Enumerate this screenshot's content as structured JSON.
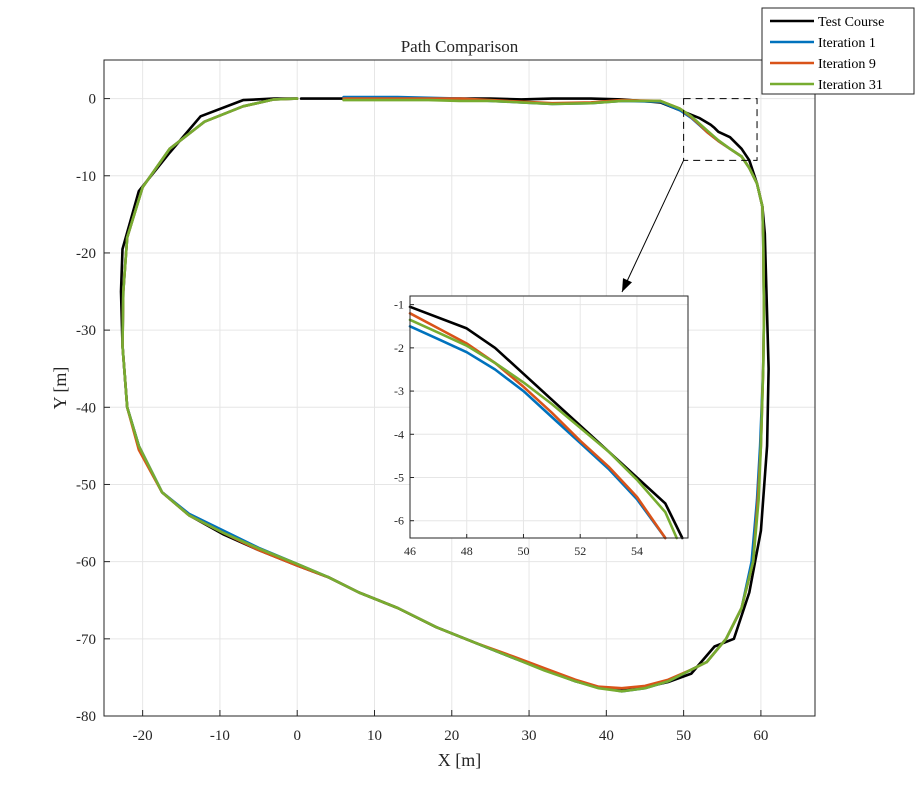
{
  "chart_data": {
    "type": "line",
    "title": "Path Comparison",
    "xlabel": "X [m]",
    "ylabel": "Y [m]",
    "xlim": [
      -25,
      67
    ],
    "ylim": [
      -80,
      5
    ],
    "xticks": [
      -20,
      -10,
      0,
      10,
      20,
      30,
      40,
      50,
      60
    ],
    "yticks": [
      0,
      -10,
      -20,
      -30,
      -40,
      -50,
      -60,
      -70,
      -80
    ],
    "grid": true,
    "legend_position": "top-right",
    "series": [
      {
        "name": "Test Course",
        "color": "#000000",
        "x": [
          0,
          -3,
          -7,
          -12.5,
          -16.5,
          -20.5,
          -22.6,
          -22.8,
          -22.6,
          -22,
          -20.5,
          -17.5,
          -14,
          -9.5,
          -5,
          0,
          4,
          8,
          13,
          18,
          23,
          28,
          32,
          36,
          39,
          42,
          45,
          48,
          51,
          54,
          56.5,
          58.5,
          60,
          60.8,
          61,
          60.8,
          60.5,
          60.2,
          59.5,
          58.5,
          57.5,
          56,
          54.5,
          54,
          53.5,
          52,
          47,
          42,
          38,
          33,
          29,
          25,
          21,
          17,
          13,
          9,
          5,
          0.5
        ],
        "y": [
          0,
          0,
          -0.2,
          -2.3,
          -7,
          -12,
          -19.5,
          -25,
          -32,
          -40,
          -45,
          -51,
          -54,
          -56.5,
          -58.5,
          -60.5,
          -62,
          -64,
          -66,
          -68.5,
          -70.5,
          -72.5,
          -74,
          -75.5,
          -76.3,
          -76.7,
          -76.3,
          -75.6,
          -74.5,
          -71,
          -70,
          -64,
          -56,
          -45,
          -35,
          -28,
          -17.5,
          -14,
          -11,
          -8,
          -6.5,
          -5,
          -4.3,
          -3.8,
          -3.4,
          -2.5,
          -0.5,
          -0.1,
          0,
          0,
          -0.1,
          0,
          0,
          0,
          0,
          0,
          0,
          0
        ]
      },
      {
        "name": "Iteration 1",
        "color": "#0072BD",
        "x": [
          0,
          -3,
          -7,
          -12,
          -16.5,
          -20,
          -22,
          -22.5,
          -22.6,
          -22,
          -20.5,
          -17.5,
          -14,
          -9.5,
          -5,
          0,
          4,
          8,
          13,
          18,
          23,
          28,
          32,
          36,
          39,
          42,
          45,
          48,
          51,
          53,
          55.5,
          57.5,
          58.8,
          59.5,
          59.9,
          60.3,
          60.4,
          60.3,
          60.2,
          59.5,
          58.5,
          57.5,
          56,
          54.5,
          53,
          52,
          51,
          49.5,
          47,
          42,
          38,
          33,
          29,
          25,
          21,
          17,
          13,
          9,
          6
        ],
        "y": [
          0,
          -0.1,
          -1,
          -3,
          -6.5,
          -11.5,
          -18,
          -25,
          -32,
          -40,
          -45,
          -51,
          -53.8,
          -56,
          -58.2,
          -60.3,
          -62,
          -64,
          -66,
          -68.5,
          -70.5,
          -72.5,
          -74,
          -75.5,
          -76.3,
          -76.8,
          -76.4,
          -75.5,
          -74,
          -73,
          -70,
          -66,
          -60,
          -52,
          -45,
          -35,
          -28,
          -18,
          -14,
          -11,
          -9,
          -7.5,
          -6.5,
          -5.5,
          -4.3,
          -3.4,
          -2.5,
          -1.5,
          -0.4,
          -0.3,
          -0.6,
          -0.7,
          -0.5,
          -0.3,
          0,
          0.1,
          0.2,
          0.2,
          0.2
        ]
      },
      {
        "name": "Iteration 9",
        "color": "#D95319",
        "x": [
          0,
          -3,
          -7,
          -12,
          -16.5,
          -20,
          -22,
          -22.5,
          -22.6,
          -22,
          -20.5,
          -17.5,
          -14,
          -9.5,
          -5,
          0,
          4,
          8,
          13,
          18,
          23,
          28,
          32,
          36,
          39,
          42,
          45,
          48,
          51,
          53,
          55.5,
          57.5,
          59,
          59.6,
          60,
          60.3,
          60.4,
          60.3,
          60.2,
          59.5,
          58.5,
          57.5,
          56,
          54.5,
          53,
          52,
          51,
          49.5,
          47,
          42,
          38,
          33,
          29,
          25,
          21,
          17,
          13,
          9,
          6
        ],
        "y": [
          0,
          -0.1,
          -1,
          -3,
          -6.5,
          -11.5,
          -18,
          -25,
          -32,
          -40,
          -45.5,
          -51,
          -54,
          -56.3,
          -58.5,
          -60.5,
          -62,
          -64,
          -66,
          -68.5,
          -70.5,
          -72.3,
          -73.8,
          -75.3,
          -76.2,
          -76.4,
          -76.1,
          -75.3,
          -74,
          -73,
          -70,
          -66,
          -60,
          -52,
          -45,
          -35,
          -28,
          -18,
          -14,
          -11,
          -9,
          -7.5,
          -6.5,
          -5.5,
          -4.3,
          -3.3,
          -2.4,
          -1.3,
          -0.3,
          -0.2,
          -0.5,
          -0.6,
          -0.4,
          -0.2,
          0,
          0,
          0,
          0,
          0
        ]
      },
      {
        "name": "Iteration 31",
        "color": "#77AC30",
        "x": [
          0,
          -3,
          -7,
          -12,
          -16.5,
          -20,
          -22,
          -22.5,
          -22.6,
          -22,
          -20.5,
          -17.5,
          -14,
          -9.5,
          -5,
          0,
          4,
          8,
          13,
          18,
          23,
          28,
          32,
          36,
          39,
          42,
          45,
          48,
          51,
          53,
          55.5,
          57.5,
          59,
          59.7,
          60,
          60.3,
          60.4,
          60.3,
          60.2,
          59.5,
          58.5,
          57.5,
          56,
          54.5,
          53,
          52,
          51,
          49.5,
          47,
          42,
          38,
          33,
          29,
          25,
          21,
          17,
          13,
          9,
          6
        ],
        "y": [
          0,
          -0.1,
          -1,
          -3,
          -6.5,
          -11.5,
          -18,
          -25,
          -32,
          -40,
          -45,
          -51,
          -54,
          -56.3,
          -58.3,
          -60.3,
          -62,
          -64,
          -66,
          -68.5,
          -70.5,
          -72.5,
          -74.1,
          -75.5,
          -76.4,
          -76.8,
          -76.4,
          -75.5,
          -74,
          -73,
          -70,
          -66,
          -60,
          -52,
          -45,
          -35,
          -28,
          -18,
          -14,
          -11,
          -9,
          -7.5,
          -6.5,
          -5.4,
          -4.1,
          -3.2,
          -2.3,
          -1.3,
          -0.3,
          -0.3,
          -0.6,
          -0.7,
          -0.5,
          -0.3,
          -0.3,
          -0.2,
          -0.2,
          -0.2,
          -0.2
        ]
      }
    ],
    "zoom_box": {
      "xlim": [
        50,
        59.5
      ],
      "ylim": [
        -8,
        0
      ]
    },
    "inset": {
      "xlim": [
        46,
        55.8
      ],
      "ylim": [
        -6.4,
        -0.8
      ],
      "xticks": [
        46,
        48,
        50,
        52,
        54
      ],
      "yticks": [
        -1,
        -2,
        -3,
        -4,
        -5,
        -6
      ],
      "series": [
        {
          "name": "Test Course",
          "color": "#000000",
          "x": [
            46,
            48,
            49,
            50,
            51,
            52,
            53,
            54,
            55,
            55.6
          ],
          "y": [
            -1.05,
            -1.55,
            -2.0,
            -2.6,
            -3.2,
            -3.8,
            -4.4,
            -5.0,
            -5.6,
            -6.4
          ]
        },
        {
          "name": "Iteration 1",
          "color": "#0072BD",
          "x": [
            46,
            47,
            48,
            49,
            50,
            51,
            52,
            53,
            54,
            55
          ],
          "y": [
            -1.5,
            -1.8,
            -2.1,
            -2.5,
            -3.0,
            -3.6,
            -4.2,
            -4.8,
            -5.5,
            -6.4
          ]
        },
        {
          "name": "Iteration 9",
          "color": "#D95319",
          "x": [
            46,
            47,
            48,
            49,
            50,
            51,
            52,
            53,
            54,
            55
          ],
          "y": [
            -1.2,
            -1.55,
            -1.9,
            -2.35,
            -2.9,
            -3.5,
            -4.15,
            -4.75,
            -5.45,
            -6.4
          ]
        },
        {
          "name": "Iteration 31",
          "color": "#77AC30",
          "x": [
            46,
            47,
            48,
            49,
            50,
            51,
            52,
            53,
            54,
            55,
            55.4
          ],
          "y": [
            -1.35,
            -1.65,
            -1.95,
            -2.35,
            -2.8,
            -3.3,
            -3.85,
            -4.4,
            -5.05,
            -5.8,
            -6.4
          ]
        }
      ]
    }
  }
}
